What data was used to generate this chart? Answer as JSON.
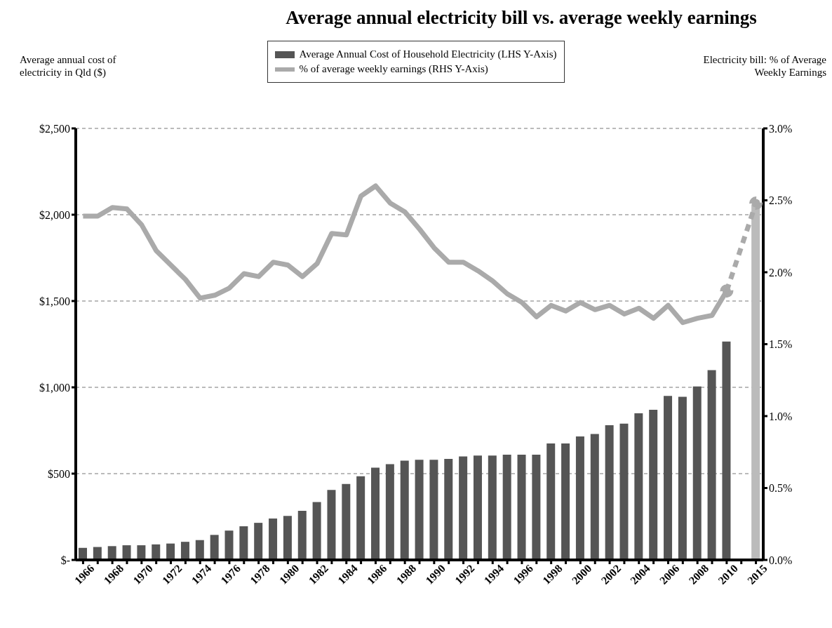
{
  "chart_data": {
    "type": "bar",
    "title": "Average annual electricity bill vs. average weekly earnings",
    "ylabel": "Average annual cost of electricity in Qld ($)",
    "y2label": "Electricity bill: % of Average Weekly Earnings",
    "categories": [
      "1966",
      null,
      "1968",
      null,
      "1970",
      null,
      "1972",
      null,
      "1974",
      null,
      "1976",
      null,
      "1978",
      null,
      "1980",
      null,
      "1982",
      null,
      "1984",
      null,
      "1986",
      null,
      "1988",
      null,
      "1990",
      null,
      "1992",
      null,
      "1994",
      null,
      "1996",
      null,
      "1998",
      null,
      "2000",
      null,
      "2002",
      null,
      "2004",
      null,
      "2006",
      null,
      "2008",
      null,
      "2010",
      null,
      "2015"
    ],
    "series": [
      {
        "name": "Average Annual Cost of Household Electricity (LHS Y-Axis)",
        "color": "#555555",
        "colors": [
          "#555555",
          "#555555",
          "#555555",
          "#555555",
          "#555555",
          "#555555",
          "#555555",
          "#555555",
          "#555555",
          "#555555",
          "#555555",
          "#555555",
          "#555555",
          "#555555",
          "#555555",
          "#555555",
          "#555555",
          "#555555",
          "#555555",
          "#555555",
          "#555555",
          "#555555",
          "#555555",
          "#555555",
          "#555555",
          "#555555",
          "#555555",
          "#555555",
          "#555555",
          "#555555",
          "#555555",
          "#555555",
          "#555555",
          "#555555",
          "#555555",
          "#555555",
          "#555555",
          "#555555",
          "#555555",
          "#555555",
          "#555555",
          "#555555",
          "#555555",
          "#555555",
          "#555555",
          null,
          "#bbbbbb"
        ],
        "values": [
          70,
          75,
          80,
          85,
          85,
          90,
          95,
          105,
          115,
          145,
          170,
          195,
          215,
          240,
          255,
          285,
          335,
          405,
          440,
          485,
          535,
          555,
          575,
          580,
          580,
          585,
          600,
          605,
          605,
          610,
          610,
          610,
          675,
          675,
          715,
          730,
          780,
          790,
          850,
          870,
          950,
          945,
          1005,
          1100,
          1265,
          null,
          2060
        ]
      },
      {
        "type": "line",
        "name": "% of average weekly earnings (RHS Y-Axis)",
        "color": "#aaaaaa",
        "axis": "y2",
        "line_style": "solid",
        "marker": "none",
        "values": [
          2.39,
          2.39,
          2.45,
          2.44,
          2.33,
          2.15,
          2.05,
          1.95,
          1.82,
          1.84,
          1.89,
          1.99,
          1.97,
          2.07,
          2.05,
          1.97,
          2.06,
          2.27,
          2.26,
          2.53,
          2.6,
          2.48,
          2.42,
          2.3,
          2.17,
          2.07,
          2.07,
          2.01,
          1.94,
          1.85,
          1.79,
          1.69,
          1.77,
          1.73,
          1.79,
          1.74,
          1.77,
          1.71,
          1.75,
          1.68,
          1.77,
          1.65,
          1.68,
          1.7,
          1.87,
          null,
          null
        ]
      },
      {
        "type": "line",
        "color": "#aaaaaa",
        "axis": "y2",
        "line_style": "dashed",
        "marker": "circle",
        "values": [
          null,
          null,
          null,
          null,
          null,
          null,
          null,
          null,
          null,
          null,
          null,
          null,
          null,
          null,
          null,
          null,
          null,
          null,
          null,
          null,
          null,
          null,
          null,
          null,
          null,
          null,
          null,
          null,
          null,
          null,
          null,
          null,
          null,
          null,
          null,
          null,
          null,
          null,
          null,
          null,
          null,
          null,
          null,
          null,
          1.87,
          null,
          2.48
        ]
      }
    ],
    "ylim": [
      0,
      2500
    ],
    "yticks": [
      {
        "value": 0,
        "label": "$-"
      },
      {
        "value": 500,
        "label": "$500"
      },
      {
        "value": 1000,
        "label": "$1,000"
      },
      {
        "value": 1500,
        "label": "$1,500"
      },
      {
        "value": 2000,
        "label": "$2,000"
      },
      {
        "value": 2500,
        "label": "$2,500"
      }
    ],
    "y2lim": [
      0,
      3
    ],
    "y2ticks": [
      {
        "value": 0,
        "label": "0.0%"
      },
      {
        "value": 0.5,
        "label": "0.5%"
      },
      {
        "value": 1,
        "label": "1.0%"
      },
      {
        "value": 1.5,
        "label": "1.5%"
      },
      {
        "value": 2,
        "label": "2.0%"
      },
      {
        "value": 2.5,
        "label": "2.5%"
      },
      {
        "value": 3,
        "label": "3.0%"
      }
    ],
    "grid": "y",
    "legend": "top"
  }
}
